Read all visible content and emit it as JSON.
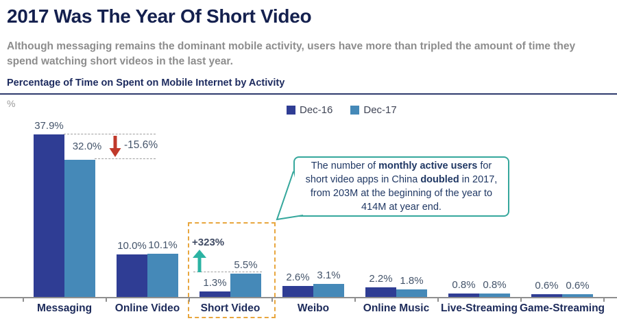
{
  "header": {
    "title": "2017 Was The Year Of Short Video",
    "subtitle": "Although messaging remains the dominant mobile activity, users have more than tripled the amount of time they spend watching short videos in the last year.",
    "chart_heading": "Percentage of Time on Spent on Mobile Internet by Activity",
    "y_axis_unit": "%"
  },
  "chart_data": {
    "type": "bar",
    "title": "Percentage of Time on Spent on Mobile Internet by Activity",
    "ylabel": "%",
    "ylim": [
      0,
      40
    ],
    "grid": false,
    "legend_position": "top-center",
    "categories": [
      "Messaging",
      "Online Video",
      "Short Video",
      "Weibo",
      "Online Music",
      "Live-Streaming",
      "Game-Streaming"
    ],
    "series": [
      {
        "name": "Dec-16",
        "color": "#2f3d94",
        "values": [
          37.9,
          10.0,
          1.3,
          2.6,
          2.2,
          0.8,
          0.6
        ]
      },
      {
        "name": "Dec-17",
        "color": "#4589b8",
        "values": [
          32.0,
          10.1,
          5.5,
          3.1,
          1.8,
          0.8,
          0.6
        ]
      }
    ],
    "value_label_format": "{value}%"
  },
  "annotations": {
    "messaging_change": "-15.6%",
    "short_video_change": "+323%",
    "arrow_down_color": "#c0392b",
    "arrow_up_color": "#2bb3a3",
    "highlight_box_color": "#e8a63e"
  },
  "callout": {
    "seg1": "The number of ",
    "seg2": "monthly active users",
    "seg3": " for short video apps in China ",
    "seg4": "doubled",
    "seg5": " in 2017, from 203M at the beginning of the year to 414M at year end.",
    "border_color": "#35a79c"
  }
}
